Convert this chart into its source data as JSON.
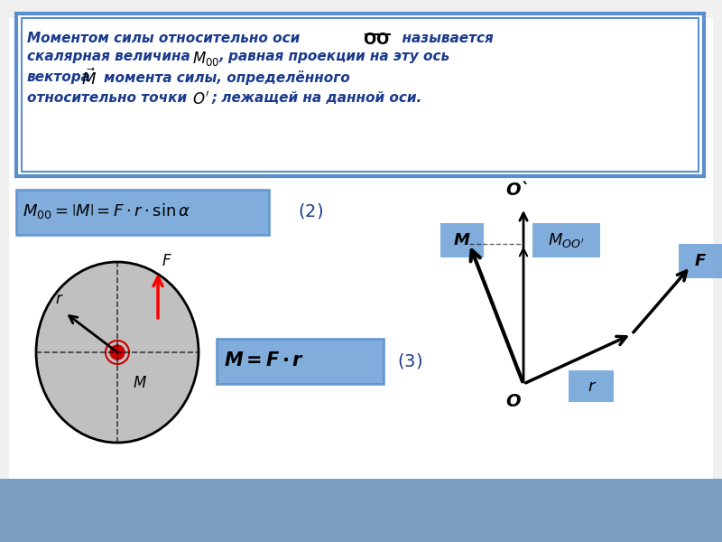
{
  "bg_color": "#f0f0f0",
  "white": "#ffffff",
  "blue_box": "#5b8fcc",
  "blue_box_light": "#6b9fd8",
  "dark_blue_text": "#1a3a8c",
  "black": "#000000",
  "red": "#cc0000",
  "gray_circle": "#c0c0c0",
  "title_lines": [
    "Моментом силы относительно оси OO  называется",
    "скалярная величина M₀₀, равная проекции на эту ось",
    "вектора    M момента силы, определённого",
    "относительно точки O'; лежащей на данной оси."
  ],
  "formula1": "M_{00} = |M| = F \\cdot r \\cdot \\sin\\alpha",
  "formula2": "\\boldsymbol{M = F \\cdot r}",
  "label2": "(2)",
  "label3": "(3)",
  "bottom_bar_color": "#7a9fbf"
}
